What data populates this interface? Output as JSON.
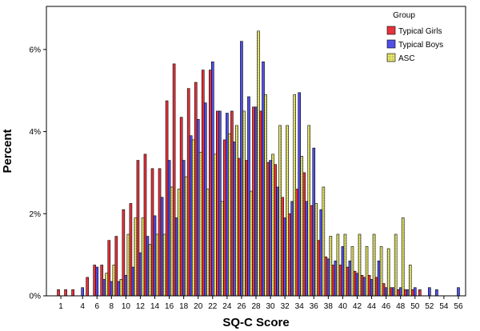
{
  "chart_data": {
    "type": "bar",
    "xlabel": "SQ-C Score",
    "ylabel": "Percent",
    "xlim": [
      -1,
      57
    ],
    "ylim": [
      0,
      7.05
    ],
    "y_ticks": [
      0,
      2,
      4,
      6
    ],
    "y_tick_labels": [
      "0%",
      "2%",
      "4%",
      "6%"
    ],
    "x_tick_labels": [
      "1",
      "4",
      "6",
      "8",
      "10",
      "12",
      "14",
      "16",
      "18",
      "20",
      "22",
      "24",
      "26",
      "28",
      "30",
      "32",
      "34",
      "36",
      "38",
      "40",
      "42",
      "44",
      "46",
      "48",
      "50",
      "52",
      "54",
      "56"
    ],
    "legend": {
      "title": "Group",
      "placement": "top-right"
    },
    "series": [
      {
        "name": "Typical Girls",
        "color": "#e8323c",
        "x": [
          1,
          2,
          3,
          5,
          6,
          7,
          8,
          9,
          10,
          11,
          12,
          13,
          14,
          15,
          16,
          17,
          18,
          19,
          20,
          21,
          22,
          23,
          24,
          25,
          26,
          27,
          28,
          29,
          30,
          31,
          32,
          33,
          34,
          35,
          36,
          37,
          38,
          39,
          40,
          41,
          42,
          43,
          44,
          45,
          46,
          47,
          48,
          49,
          50,
          51
        ],
        "values": [
          0.15,
          0.15,
          0.15,
          0.45,
          0.75,
          0.75,
          1.35,
          1.45,
          2.1,
          2.25,
          3.3,
          3.45,
          3.1,
          3.1,
          4.75,
          5.65,
          4.35,
          5.05,
          5.2,
          5.5,
          5.5,
          4.5,
          3.8,
          4.5,
          3.35,
          3.3,
          4.6,
          4.5,
          3.25,
          3.2,
          2.4,
          2.0,
          2.6,
          3.0,
          2.2,
          1.35,
          0.95,
          0.75,
          0.75,
          0.7,
          0.6,
          0.5,
          0.5,
          0.45,
          0.3,
          0.2,
          0.15,
          0.15,
          0.15,
          0.15
        ]
      },
      {
        "name": "Typical Boys",
        "color": "#5050e8",
        "x": [
          4,
          6,
          7,
          8,
          9,
          10,
          11,
          12,
          13,
          14,
          15,
          16,
          17,
          18,
          19,
          20,
          21,
          22,
          23,
          24,
          25,
          26,
          27,
          28,
          29,
          30,
          31,
          32,
          33,
          34,
          35,
          36,
          37,
          38,
          39,
          40,
          41,
          42,
          43,
          44,
          45,
          46,
          47,
          48,
          49,
          50,
          52,
          53,
          56
        ],
        "values": [
          0.2,
          0.7,
          0.4,
          0.35,
          0.35,
          0.5,
          0.7,
          1.05,
          1.45,
          1.95,
          2.4,
          3.3,
          1.9,
          3.3,
          3.9,
          4.3,
          4.7,
          5.7,
          4.5,
          4.45,
          3.75,
          6.2,
          4.85,
          4.6,
          5.7,
          3.3,
          2.65,
          1.9,
          2.3,
          4.95,
          2.3,
          3.6,
          2.1,
          0.9,
          0.85,
          1.2,
          0.85,
          0.55,
          0.45,
          0.4,
          0.85,
          0.2,
          0.2,
          0.2,
          0.15,
          0.2,
          0.2,
          0.15,
          0.2
        ]
      },
      {
        "name": "ASC",
        "color": "#f0f078",
        "x": [
          7,
          8,
          9,
          10,
          11,
          12,
          13,
          14,
          15,
          16,
          17,
          18,
          19,
          20,
          21,
          22,
          23,
          24,
          25,
          26,
          27,
          28,
          29,
          30,
          31,
          32,
          33,
          34,
          35,
          36,
          37,
          38,
          39,
          40,
          41,
          42,
          43,
          44,
          45,
          46,
          47,
          48,
          49
        ],
        "values": [
          0.55,
          0.75,
          0.4,
          1.5,
          1.9,
          1.9,
          1.25,
          1.5,
          1.5,
          2.65,
          2.6,
          2.9,
          3.8,
          3.5,
          2.6,
          3.45,
          2.3,
          3.95,
          4.15,
          4.5,
          2.55,
          6.45,
          4.9,
          3.45,
          4.15,
          4.15,
          4.9,
          3.4,
          4.15,
          2.25,
          2.65,
          1.45,
          1.5,
          1.5,
          1.2,
          1.5,
          1.2,
          1.5,
          1.2,
          1.15,
          1.5,
          1.9,
          0.75
        ]
      }
    ]
  }
}
